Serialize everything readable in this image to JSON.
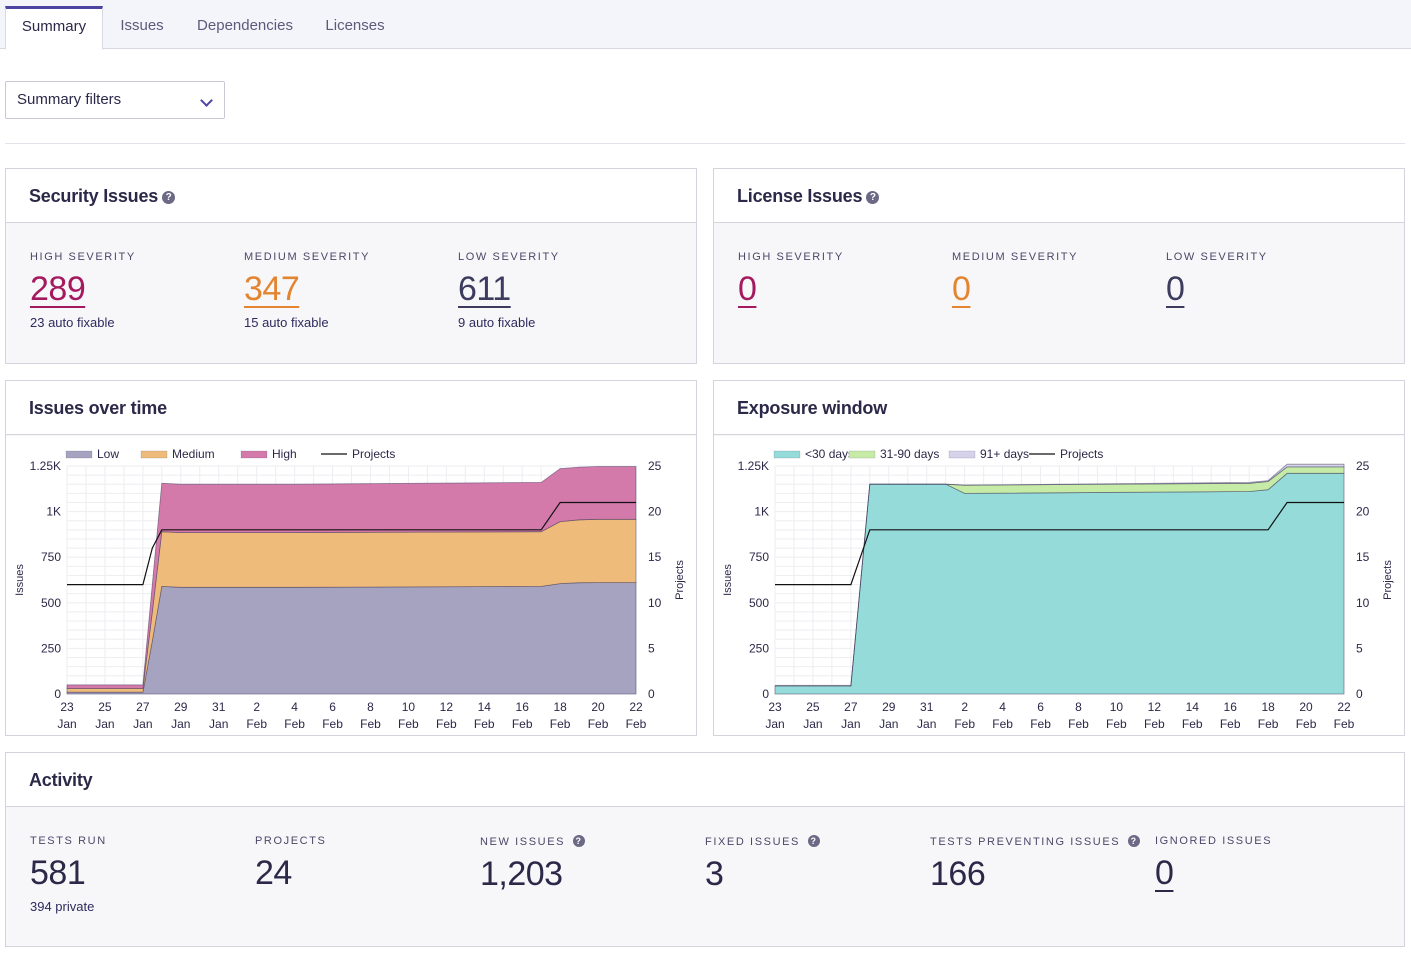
{
  "tabs": [
    {
      "label": "Summary",
      "active": true
    },
    {
      "label": "Issues",
      "active": false
    },
    {
      "label": "Dependencies",
      "active": false
    },
    {
      "label": "Licenses",
      "active": false
    }
  ],
  "filter": {
    "label": "Summary filters",
    "icon": "chevron-down-icon"
  },
  "security": {
    "title": "Security Issues",
    "help_icon": "question-circle-icon",
    "high": {
      "label": "HIGH SEVERITY",
      "value": "289",
      "sub": "23 auto fixable"
    },
    "medium": {
      "label": "MEDIUM SEVERITY",
      "value": "347",
      "sub": "15 auto fixable"
    },
    "low": {
      "label": "LOW SEVERITY",
      "value": "611",
      "sub": "9 auto fixable"
    }
  },
  "license": {
    "title": "License Issues",
    "high": {
      "label": "HIGH SEVERITY",
      "value": "0"
    },
    "medium": {
      "label": "MEDIUM SEVERITY",
      "value": "0"
    },
    "low": {
      "label": "LOW SEVERITY",
      "value": "0"
    }
  },
  "colors": {
    "high": "#a4195f",
    "medium": "#e38530",
    "low": "#3d3b5e",
    "area_low": "#a6a3c0",
    "area_medium": "#efbb7a",
    "area_high": "#d47aab",
    "area_lt30": "#94dbd9",
    "area_31_90": "#c6eba6",
    "area_91": "#d5d2ea"
  },
  "activity": {
    "title": "Activity",
    "tests_run": {
      "label": "TESTS RUN",
      "value": "581",
      "sub": "394 private"
    },
    "projects": {
      "label": "PROJECTS",
      "value": "24"
    },
    "new_issues": {
      "label": "NEW ISSUES",
      "value": "1,203"
    },
    "fixed_issues": {
      "label": "FIXED ISSUES",
      "value": "3"
    },
    "tests_preventing": {
      "label": "TESTS PREVENTING ISSUES",
      "value": "166"
    },
    "ignored_issues": {
      "label": "IGNORED ISSUES",
      "value": "0"
    }
  },
  "chart_data": [
    {
      "type": "area",
      "title": "Issues over time",
      "ylabel": "Issues",
      "y2label": "Projects",
      "ylim": [
        0,
        1250
      ],
      "y2lim": [
        0,
        25
      ],
      "yticks": [
        "0",
        "250",
        "500",
        "750",
        "1K",
        "1.25K"
      ],
      "y2ticks": [
        "0",
        "5",
        "10",
        "15",
        "20",
        "25"
      ],
      "xticks": [
        {
          "day": "23",
          "mon": "Jan"
        },
        {
          "day": "25",
          "mon": "Jan"
        },
        {
          "day": "27",
          "mon": "Jan"
        },
        {
          "day": "29",
          "mon": "Jan"
        },
        {
          "day": "31",
          "mon": "Jan"
        },
        {
          "day": "2",
          "mon": "Feb"
        },
        {
          "day": "4",
          "mon": "Feb"
        },
        {
          "day": "6",
          "mon": "Feb"
        },
        {
          "day": "8",
          "mon": "Feb"
        },
        {
          "day": "10",
          "mon": "Feb"
        },
        {
          "day": "12",
          "mon": "Feb"
        },
        {
          "day": "14",
          "mon": "Feb"
        },
        {
          "day": "16",
          "mon": "Feb"
        },
        {
          "day": "18",
          "mon": "Feb"
        },
        {
          "day": "20",
          "mon": "Feb"
        },
        {
          "day": "22",
          "mon": "Feb"
        }
      ],
      "x": [
        0,
        4,
        4.5,
        5,
        6,
        12,
        25,
        26,
        27,
        28,
        30
      ],
      "legend": [
        "Low",
        "Medium",
        "High",
        "Projects"
      ],
      "series": [
        {
          "name": "Low",
          "stack": true,
          "values": [
            10,
            10,
            290,
            590,
            585,
            585,
            590,
            605,
            610,
            611,
            611
          ]
        },
        {
          "name": "Medium",
          "stack": true,
          "values": [
            20,
            20,
            160,
            300,
            300,
            300,
            300,
            340,
            345,
            347,
            347
          ]
        },
        {
          "name": "High",
          "stack": true,
          "values": [
            20,
            20,
            150,
            265,
            265,
            265,
            270,
            290,
            289,
            289,
            289
          ]
        },
        {
          "name": "Projects",
          "axis": "right",
          "values": [
            12,
            12,
            16,
            18,
            18,
            18,
            18,
            21,
            21,
            21,
            21
          ]
        }
      ]
    },
    {
      "type": "area",
      "title": "Exposure window",
      "ylabel": "Issues",
      "y2label": "Projects",
      "ylim": [
        0,
        1250
      ],
      "y2lim": [
        0,
        25
      ],
      "yticks": [
        "0",
        "250",
        "500",
        "750",
        "1K",
        "1.25K"
      ],
      "y2ticks": [
        "0",
        "5",
        "10",
        "15",
        "20",
        "25"
      ],
      "xticks": [
        {
          "day": "23",
          "mon": "Jan"
        },
        {
          "day": "25",
          "mon": "Jan"
        },
        {
          "day": "27",
          "mon": "Jan"
        },
        {
          "day": "29",
          "mon": "Jan"
        },
        {
          "day": "31",
          "mon": "Jan"
        },
        {
          "day": "2",
          "mon": "Feb"
        },
        {
          "day": "4",
          "mon": "Feb"
        },
        {
          "day": "6",
          "mon": "Feb"
        },
        {
          "day": "8",
          "mon": "Feb"
        },
        {
          "day": "10",
          "mon": "Feb"
        },
        {
          "day": "12",
          "mon": "Feb"
        },
        {
          "day": "14",
          "mon": "Feb"
        },
        {
          "day": "16",
          "mon": "Feb"
        },
        {
          "day": "18",
          "mon": "Feb"
        },
        {
          "day": "20",
          "mon": "Feb"
        },
        {
          "day": "22",
          "mon": "Feb"
        }
      ],
      "x": [
        0,
        4,
        5,
        9,
        10,
        25,
        26,
        27,
        30
      ],
      "legend": [
        "<30 days",
        "31-90 days",
        "91+ days",
        "Projects"
      ],
      "series": [
        {
          "name": "<30 days",
          "stack": true,
          "values": [
            45,
            45,
            1150,
            1150,
            1100,
            1110,
            1120,
            1210,
            1210
          ]
        },
        {
          "name": "31-90 days",
          "stack": true,
          "values": [
            0,
            0,
            0,
            0,
            45,
            45,
            45,
            35,
            35
          ]
        },
        {
          "name": "91+ days",
          "stack": true,
          "values": [
            0,
            0,
            0,
            0,
            0,
            5,
            5,
            15,
            15
          ]
        },
        {
          "name": "Projects",
          "axis": "right",
          "values": [
            12,
            12,
            18,
            18,
            18,
            18,
            18,
            21,
            21
          ]
        }
      ]
    }
  ]
}
